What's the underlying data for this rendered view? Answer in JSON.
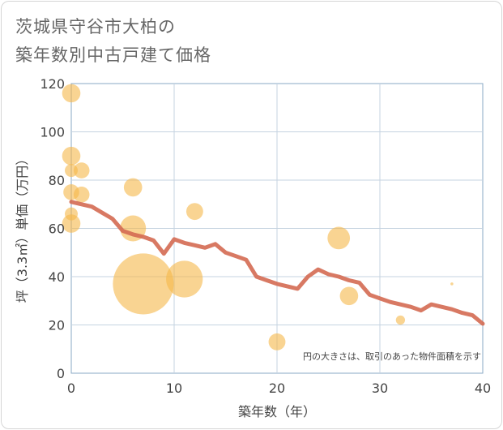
{
  "chart_data": {
    "type": "scatter",
    "title_lines": [
      "茨城県守谷市大柏の",
      "築年数別中古戸建て価格"
    ],
    "xlabel": "築年数（年）",
    "ylabel": "坪（3.3㎡）単価（万円）",
    "xlim": [
      0,
      40
    ],
    "ylim": [
      0,
      120
    ],
    "x_ticks": [
      0,
      10,
      20,
      30,
      40
    ],
    "y_ticks": [
      0,
      20,
      40,
      60,
      80,
      100,
      120
    ],
    "grid": true,
    "annotation": "円の大きさは、取引のあった物件面積を示す",
    "colors": {
      "bubble": "#f5b74a",
      "line": "#d46a52",
      "grid": "#c5d3e0",
      "axis": "#8aa8c4"
    },
    "bubbles": [
      {
        "x": 0,
        "y": 116,
        "size": 2
      },
      {
        "x": 0,
        "y": 90,
        "size": 2
      },
      {
        "x": 0,
        "y": 84,
        "size": 1
      },
      {
        "x": 1,
        "y": 84,
        "size": 1.5
      },
      {
        "x": 0,
        "y": 75,
        "size": 1.5
      },
      {
        "x": 1,
        "y": 74,
        "size": 1.5
      },
      {
        "x": 0,
        "y": 66,
        "size": 1
      },
      {
        "x": 0,
        "y": 62,
        "size": 2
      },
      {
        "x": 6,
        "y": 77,
        "size": 2
      },
      {
        "x": 6,
        "y": 60,
        "size": 4
      },
      {
        "x": 7,
        "y": 37,
        "size": 22
      },
      {
        "x": 11,
        "y": 39,
        "size": 8
      },
      {
        "x": 12,
        "y": 67,
        "size": 1.7
      },
      {
        "x": 20,
        "y": 13,
        "size": 1.7
      },
      {
        "x": 26,
        "y": 56,
        "size": 3
      },
      {
        "x": 27,
        "y": 32,
        "size": 2
      },
      {
        "x": 32,
        "y": 22,
        "size": 0.5
      },
      {
        "x": 37,
        "y": 37,
        "size": 0.05
      }
    ],
    "trend_line": {
      "x": [
        0,
        1,
        2,
        3,
        4,
        5,
        6,
        7,
        8,
        9,
        10,
        11,
        12,
        13,
        14,
        15,
        16,
        17,
        18,
        19,
        20,
        21,
        22,
        23,
        24,
        25,
        26,
        27,
        28,
        29,
        30,
        31,
        32,
        33,
        34,
        35,
        36,
        37,
        38,
        39,
        40
      ],
      "y": [
        71,
        70,
        69,
        66.5,
        64,
        59,
        57.5,
        56.5,
        55,
        49.5,
        55.5,
        54,
        53,
        52,
        53.5,
        50,
        48.5,
        47,
        40,
        38.5,
        37,
        36,
        35,
        40,
        43,
        41,
        40,
        38.5,
        37.5,
        32.5,
        31,
        29.5,
        28.5,
        27.5,
        26,
        28.5,
        27.5,
        26.5,
        25,
        24,
        20.5
      ]
    }
  }
}
